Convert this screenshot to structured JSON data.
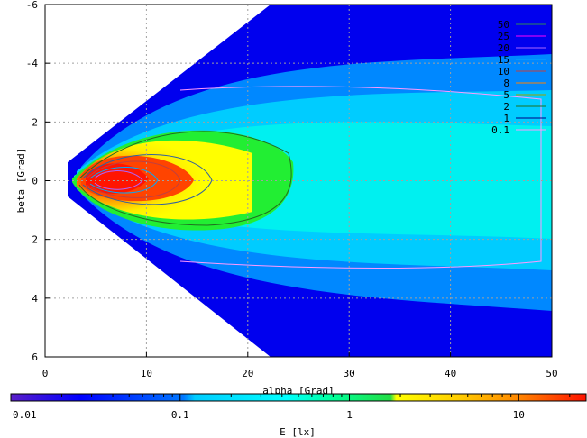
{
  "chart_data": {
    "type": "heatmap",
    "xlabel": "alpha [Grad]",
    "ylabel": "beta [Grad]",
    "xlim": [
      0,
      50
    ],
    "ylim": [
      6,
      -6
    ],
    "x_ticks": [
      "0",
      "10",
      "20",
      "30",
      "40",
      "50"
    ],
    "y_ticks": [
      "-6",
      "-4",
      "-2",
      "0",
      "2",
      "4",
      "6"
    ],
    "grid": true,
    "colorbar": {
      "label": "E [lx]",
      "scale": "log",
      "range": [
        0.01,
        25
      ],
      "tick_labels": [
        "0.01",
        "0.1",
        "1",
        "10"
      ]
    },
    "contour_legend": {
      "placement": "top-right",
      "entries": [
        {
          "label": "50",
          "color": "#2e8b57"
        },
        {
          "label": "25",
          "color": "#ff00ff"
        },
        {
          "label": "20",
          "color": "#ad66ff"
        },
        {
          "label": "15",
          "color": "#00aaff"
        },
        {
          "label": "10",
          "color": "#c04040"
        },
        {
          "label": "8",
          "color": "#ff8000"
        },
        {
          "label": "5",
          "color": "#a0a000"
        },
        {
          "label": "2",
          "color": "#207020"
        },
        {
          "label": "1",
          "color": "#000080"
        },
        {
          "label": "0.1",
          "color": "#ff99ff"
        }
      ]
    }
  }
}
